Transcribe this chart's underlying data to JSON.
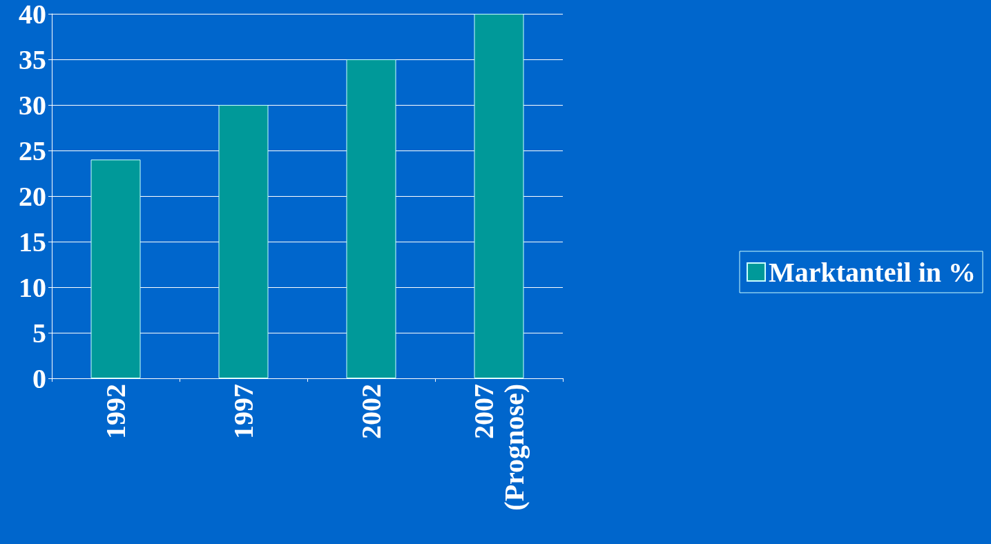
{
  "chart_data": {
    "type": "bar",
    "categories": [
      "1992",
      "1997",
      "2002",
      "2007 (Prognose)"
    ],
    "series": [
      {
        "name": "Marktanteil in %",
        "color": "#009999",
        "values": [
          24,
          30,
          35,
          40
        ]
      }
    ],
    "ylim": [
      0,
      40
    ],
    "yticks": [
      0,
      5,
      10,
      15,
      20,
      25,
      30,
      35,
      40
    ],
    "grid": "y",
    "legend": "right"
  }
}
